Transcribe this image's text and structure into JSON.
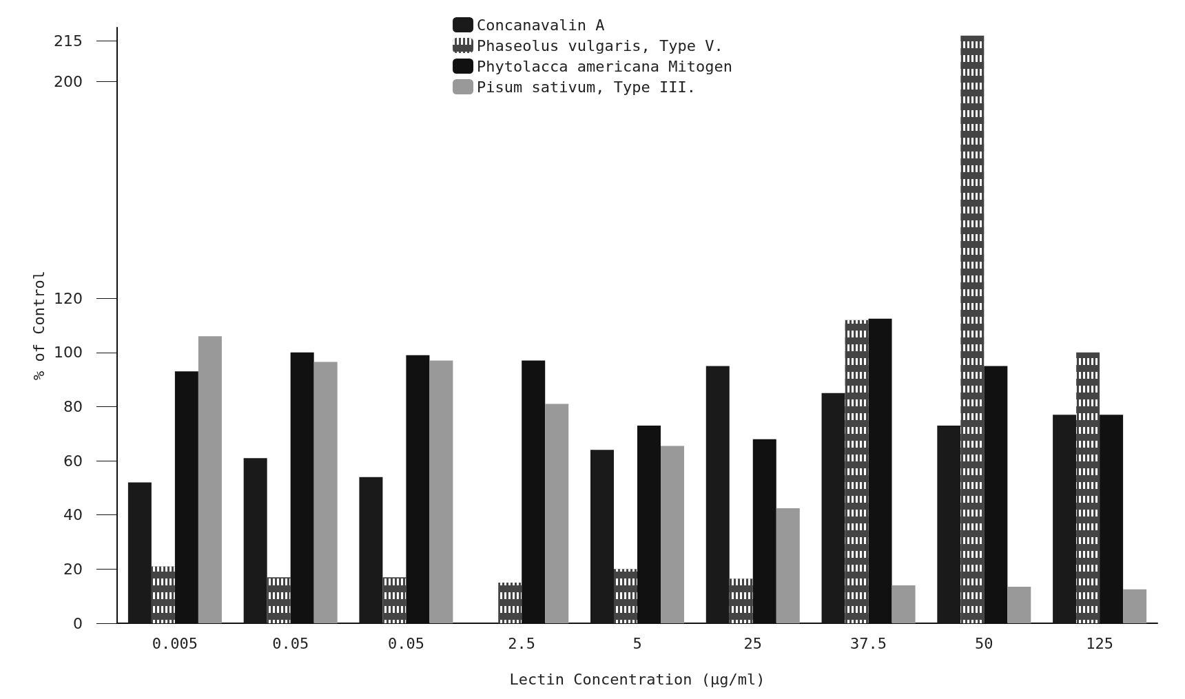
{
  "chart_data": {
    "type": "bar",
    "xlabel": "Lectin Concentration (µg/ml)",
    "ylabel": "% of Control",
    "categories": [
      "0.005",
      "0.05",
      "0.05",
      "2.5",
      "5",
      "25",
      "37.5",
      "50",
      "125"
    ],
    "series": [
      {
        "name": "Concanavalin A",
        "color": "#1a1a1a",
        "values": [
          52,
          61,
          54,
          null,
          64,
          95,
          85,
          73,
          77
        ]
      },
      {
        "name": "Phaseolus vulgaris, Type V.",
        "color": "#444444",
        "values": [
          21,
          17,
          17,
          15,
          20,
          16.5,
          112,
          217,
          100
        ]
      },
      {
        "name": "Phytolacca americana Mitogen",
        "color": "#111111",
        "values": [
          93,
          100,
          99,
          97,
          73,
          68,
          112.5,
          95,
          77
        ]
      },
      {
        "name": "Pisum sativum, Type III.",
        "color": "#999999",
        "values": [
          106,
          96.5,
          97,
          81,
          65.5,
          42.5,
          14,
          13.5,
          12.5
        ]
      }
    ],
    "ylim": [
      0,
      220
    ],
    "yticks": [
      0,
      20,
      40,
      60,
      80,
      100,
      120,
      200,
      215
    ],
    "grid": false,
    "legend": "top"
  }
}
